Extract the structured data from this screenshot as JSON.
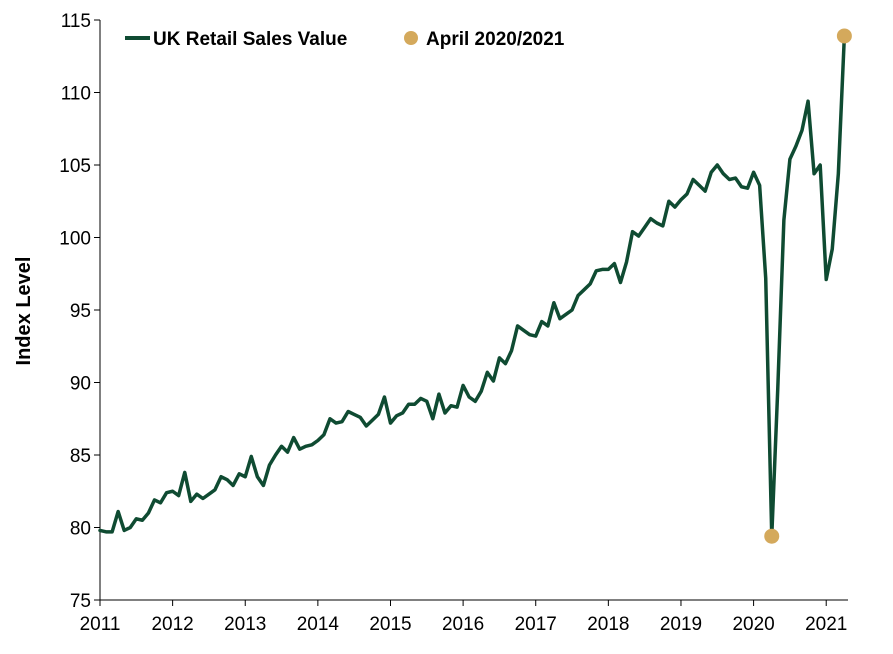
{
  "chart_data": {
    "type": "line",
    "title": "",
    "xlabel": "",
    "ylabel": "Index Level",
    "xlim": [
      2011.0,
      2021.3
    ],
    "ylim": [
      75,
      115
    ],
    "y_ticks": [
      75,
      80,
      85,
      90,
      95,
      100,
      105,
      110,
      115
    ],
    "x_ticks": [
      2011,
      2012,
      2013,
      2014,
      2015,
      2016,
      2017,
      2018,
      2019,
      2020,
      2021
    ],
    "x_tick_labels": [
      "2011",
      "2012",
      "2013",
      "2014",
      "2015",
      "2016",
      "2017",
      "2018",
      "2019",
      "2020",
      "2021"
    ],
    "grid": false,
    "legend_position": "top",
    "colors": {
      "line": "#0f4b32",
      "marker": "#d4a95c",
      "axis": "#000000"
    },
    "series": [
      {
        "name": "UK Retail Sales Value",
        "kind": "line",
        "x": [
          2011.0,
          2011.083,
          2011.167,
          2011.25,
          2011.333,
          2011.417,
          2011.5,
          2011.583,
          2011.667,
          2011.75,
          2011.833,
          2011.917,
          2012.0,
          2012.083,
          2012.167,
          2012.25,
          2012.333,
          2012.417,
          2012.5,
          2012.583,
          2012.667,
          2012.75,
          2012.833,
          2012.917,
          2013.0,
          2013.083,
          2013.167,
          2013.25,
          2013.333,
          2013.417,
          2013.5,
          2013.583,
          2013.667,
          2013.75,
          2013.833,
          2013.917,
          2014.0,
          2014.083,
          2014.167,
          2014.25,
          2014.333,
          2014.417,
          2014.5,
          2014.583,
          2014.667,
          2014.75,
          2014.833,
          2014.917,
          2015.0,
          2015.083,
          2015.167,
          2015.25,
          2015.333,
          2015.417,
          2015.5,
          2015.583,
          2015.667,
          2015.75,
          2015.833,
          2015.917,
          2016.0,
          2016.083,
          2016.167,
          2016.25,
          2016.333,
          2016.417,
          2016.5,
          2016.583,
          2016.667,
          2016.75,
          2016.833,
          2016.917,
          2017.0,
          2017.083,
          2017.167,
          2017.25,
          2017.333,
          2017.417,
          2017.5,
          2017.583,
          2017.667,
          2017.75,
          2017.833,
          2017.917,
          2018.0,
          2018.083,
          2018.167,
          2018.25,
          2018.333,
          2018.417,
          2018.5,
          2018.583,
          2018.667,
          2018.75,
          2018.833,
          2018.917,
          2019.0,
          2019.083,
          2019.167,
          2019.25,
          2019.333,
          2019.417,
          2019.5,
          2019.583,
          2019.667,
          2019.75,
          2019.833,
          2019.917,
          2020.0,
          2020.083,
          2020.167,
          2020.25,
          2020.333,
          2020.417,
          2020.5,
          2020.583,
          2020.667,
          2020.75,
          2020.833,
          2020.917,
          2021.0,
          2021.083,
          2021.167,
          2021.25
        ],
        "values": [
          79.8,
          79.7,
          79.7,
          81.1,
          79.8,
          80.0,
          80.6,
          80.5,
          81.0,
          81.9,
          81.7,
          82.4,
          82.5,
          82.2,
          83.8,
          81.8,
          82.3,
          82.0,
          82.3,
          82.6,
          83.5,
          83.3,
          82.9,
          83.7,
          83.5,
          84.9,
          83.5,
          82.9,
          84.3,
          85.0,
          85.6,
          85.2,
          86.2,
          85.4,
          85.6,
          85.7,
          86.0,
          86.4,
          87.5,
          87.2,
          87.3,
          88.0,
          87.8,
          87.6,
          87.0,
          87.4,
          87.8,
          89.0,
          87.2,
          87.7,
          87.9,
          88.5,
          88.5,
          88.9,
          88.7,
          87.5,
          89.2,
          87.9,
          88.4,
          88.3,
          89.8,
          89.0,
          88.7,
          89.4,
          90.7,
          90.1,
          91.7,
          91.3,
          92.2,
          93.9,
          93.6,
          93.3,
          93.2,
          94.2,
          93.9,
          95.5,
          94.4,
          94.7,
          95.0,
          96.0,
          96.4,
          96.8,
          97.7,
          97.8,
          97.8,
          98.2,
          96.9,
          98.3,
          100.4,
          100.1,
          100.7,
          101.3,
          101.0,
          100.8,
          102.5,
          102.1,
          102.6,
          103.0,
          104.0,
          103.6,
          103.2,
          104.5,
          105.0,
          104.4,
          104.0,
          104.1,
          103.5,
          103.4,
          104.5,
          103.6,
          97.2,
          79.4,
          89.6,
          101.2,
          105.4,
          106.3,
          107.4,
          109.4,
          104.4,
          105.0,
          97.1,
          99.2,
          104.4,
          113.9
        ]
      },
      {
        "name": "April 2020/2021",
        "kind": "scatter",
        "x": [
          2020.25,
          2021.25
        ],
        "values": [
          79.4,
          113.9
        ]
      }
    ]
  }
}
